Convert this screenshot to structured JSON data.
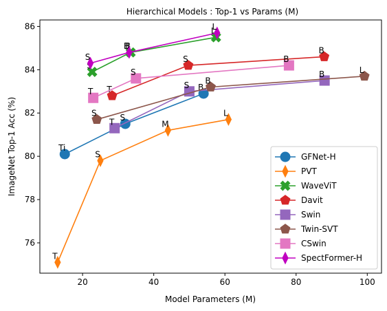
{
  "chart_data": {
    "type": "line",
    "title": "Hierarchical Models : Top-1 vs Params (M)",
    "xlabel": "Model Parameters (M)",
    "ylabel": "ImageNet Top-1 Acc (%)",
    "xlim": [
      8,
      104
    ],
    "ylim": [
      74.6,
      86.3
    ],
    "xticks": [
      20,
      40,
      60,
      80,
      100
    ],
    "yticks": [
      76,
      78,
      80,
      82,
      84,
      86
    ],
    "grid": false,
    "legend_position": "lower-right",
    "series": [
      {
        "name": "GFNet-H",
        "color": "#1f77b4",
        "marker": "circle",
        "points": [
          {
            "x": 15,
            "y": 80.1,
            "label": "Ti"
          },
          {
            "x": 32,
            "y": 81.5,
            "label": "S"
          },
          {
            "x": 54,
            "y": 82.9,
            "label": "B"
          }
        ]
      },
      {
        "name": "PVT",
        "color": "#ff7f0e",
        "marker": "thin_diamond",
        "points": [
          {
            "x": 13,
            "y": 75.1,
            "label": "T"
          },
          {
            "x": 25,
            "y": 79.8,
            "label": "S"
          },
          {
            "x": 44,
            "y": 81.2,
            "label": "M"
          },
          {
            "x": 61,
            "y": 81.7,
            "label": "L"
          }
        ]
      },
      {
        "name": "WaveViT",
        "color": "#2ca02c",
        "marker": "x",
        "points": [
          {
            "x": 22.7,
            "y": 83.9,
            "label": "S"
          },
          {
            "x": 33.5,
            "y": 84.8,
            "label": "B"
          },
          {
            "x": 57.5,
            "y": 85.5,
            "label": "L"
          }
        ]
      },
      {
        "name": "Davit",
        "color": "#d62728",
        "marker": "pentagon",
        "points": [
          {
            "x": 28.3,
            "y": 82.8,
            "label": "T"
          },
          {
            "x": 49.7,
            "y": 84.2,
            "label": "S"
          },
          {
            "x": 87.9,
            "y": 84.6,
            "label": "B"
          }
        ]
      },
      {
        "name": "Swin",
        "color": "#9467bd",
        "marker": "square",
        "points": [
          {
            "x": 29,
            "y": 81.3,
            "label": "T"
          },
          {
            "x": 50,
            "y": 83.0,
            "label": "S"
          },
          {
            "x": 88,
            "y": 83.5,
            "label": "B"
          }
        ]
      },
      {
        "name": "Twin-SVT",
        "color": "#8c564b",
        "marker": "pentagon",
        "points": [
          {
            "x": 24,
            "y": 81.7,
            "label": "S"
          },
          {
            "x": 56,
            "y": 83.2,
            "label": "B"
          },
          {
            "x": 99.2,
            "y": 83.7,
            "label": "L"
          }
        ]
      },
      {
        "name": "CSwin",
        "color": "#e377c2",
        "marker": "square",
        "points": [
          {
            "x": 23,
            "y": 82.7,
            "label": "T"
          },
          {
            "x": 35,
            "y": 83.6,
            "label": "S"
          },
          {
            "x": 78,
            "y": 84.2,
            "label": "B"
          }
        ]
      },
      {
        "name": "SpectFormer-H",
        "color": "#c000c0",
        "marker": "thin_diamond",
        "points": [
          {
            "x": 22.2,
            "y": 84.3,
            "label": "S"
          },
          {
            "x": 33.1,
            "y": 84.8,
            "label": "B"
          },
          {
            "x": 57.8,
            "y": 85.7,
            "label": "L"
          }
        ]
      }
    ]
  }
}
